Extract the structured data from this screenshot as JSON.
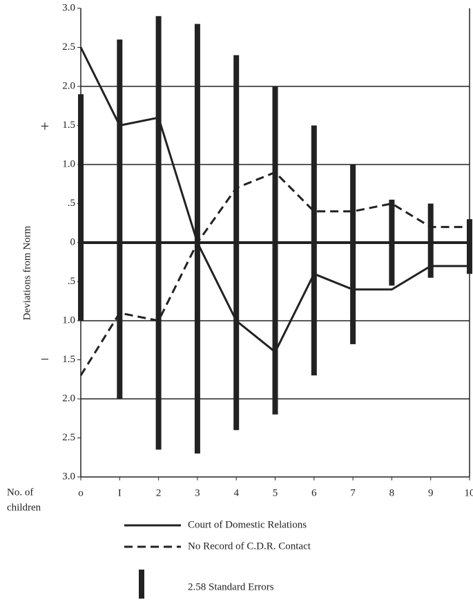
{
  "chart_data": {
    "type": "line",
    "y_axis_label": "Deviations from Norm",
    "x_axis_label": [
      "No. of",
      "children"
    ],
    "annotations": {
      "plus": "+",
      "minus": "−"
    },
    "x": [
      0,
      1,
      2,
      3,
      4,
      5,
      6,
      7,
      8,
      9,
      10
    ],
    "xlim": [
      0,
      10
    ],
    "xticks": [
      {
        "value": 0,
        "label": "o"
      },
      {
        "value": 1,
        "label": "I"
      },
      2,
      3,
      4,
      5,
      6,
      7,
      8,
      9,
      10
    ],
    "ylim": [
      -3,
      3
    ],
    "yticks": [
      {
        "value": 3,
        "label": "3.0"
      },
      {
        "value": 2.5,
        "label": "2.5"
      },
      {
        "value": 2,
        "label": "2.0"
      },
      {
        "value": 1.5,
        "label": "1.5"
      },
      {
        "value": 1,
        "label": "1.0"
      },
      {
        "value": 0.5,
        "label": ".5"
      },
      0,
      {
        "value": -0.5,
        "label": ".5"
      },
      {
        "value": -1,
        "label": "1.0"
      },
      {
        "value": -1.5,
        "label": "1.5"
      },
      {
        "value": -2,
        "label": "2.0"
      },
      {
        "value": -2.5,
        "label": "2.5"
      },
      {
        "value": -3,
        "label": "3.0"
      }
    ],
    "grid": true,
    "series": [
      {
        "name": "Court of Domestic Relations",
        "color": "#222",
        "dash": "solid",
        "values": [
          2.5,
          1.5,
          1.6,
          0,
          -1.0,
          -1.4,
          -0.4,
          -0.6,
          -0.6,
          -0.3,
          -0.3
        ]
      },
      {
        "name": "No Record of C.D.R. Contact",
        "color": "#222",
        "dash": "dashed",
        "values": [
          -1.7,
          -0.9,
          -1.0,
          0,
          0.7,
          0.9,
          0.4,
          0.4,
          0.5,
          0.2,
          0.2
        ]
      }
    ],
    "error_bars": {
      "name": "2.58 Standard Errors",
      "color": "#222",
      "high": [
        1.9,
        2.6,
        2.9,
        2.8,
        2.4,
        2.0,
        1.5,
        1.0,
        0.55,
        0.5,
        0.3
      ],
      "low": [
        -1.0,
        -2.0,
        -2.65,
        -2.7,
        -2.4,
        -2.2,
        -1.7,
        -1.3,
        -0.55,
        -0.45,
        -0.4
      ]
    }
  }
}
